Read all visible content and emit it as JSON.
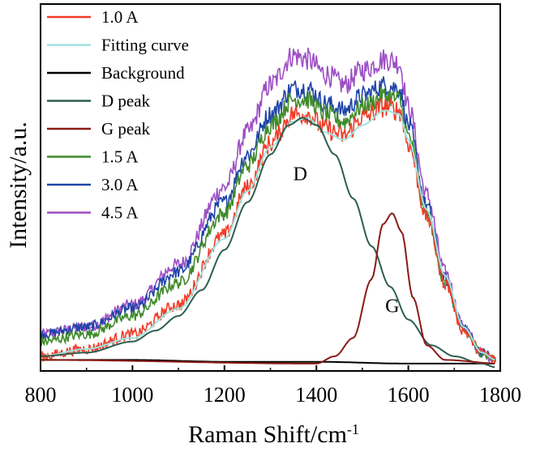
{
  "chart_data": {
    "type": "line",
    "title": "",
    "xlabel": "Raman Shift/cm",
    "xlabel_sup": "-1",
    "ylabel": "Intensity/a.u.",
    "xlim": [
      800,
      1800
    ],
    "ylim": [
      0,
      1.0
    ],
    "x_ticks": [
      800,
      1000,
      1200,
      1400,
      1600,
      1800
    ],
    "y_ticks_labeled": false,
    "grid": false,
    "legend_position": "top-left",
    "annotations": [
      {
        "text": "D",
        "x": 1365,
        "y": 0.52
      },
      {
        "text": "G",
        "x": 1565,
        "y": 0.16
      }
    ],
    "series": [
      {
        "name": "1.0 A",
        "color": "#f03c28",
        "points": [
          [
            800,
            0.04
          ],
          [
            900,
            0.06
          ],
          [
            1000,
            0.1
          ],
          [
            1100,
            0.18
          ],
          [
            1200,
            0.37
          ],
          [
            1250,
            0.5
          ],
          [
            1300,
            0.62
          ],
          [
            1350,
            0.7
          ],
          [
            1380,
            0.7
          ],
          [
            1420,
            0.66
          ],
          [
            1460,
            0.64
          ],
          [
            1500,
            0.69
          ],
          [
            1550,
            0.72
          ],
          [
            1580,
            0.71
          ],
          [
            1600,
            0.62
          ],
          [
            1640,
            0.42
          ],
          [
            1680,
            0.24
          ],
          [
            1720,
            0.11
          ],
          [
            1760,
            0.05
          ],
          [
            1790,
            0.03
          ]
        ]
      },
      {
        "name": "Fitting curve",
        "color": "#9fe3e0",
        "points": [
          [
            800,
            0.04
          ],
          [
            900,
            0.06
          ],
          [
            1000,
            0.09
          ],
          [
            1100,
            0.17
          ],
          [
            1200,
            0.36
          ],
          [
            1250,
            0.49
          ],
          [
            1300,
            0.61
          ],
          [
            1350,
            0.68
          ],
          [
            1380,
            0.69
          ],
          [
            1420,
            0.65
          ],
          [
            1460,
            0.63
          ],
          [
            1500,
            0.67
          ],
          [
            1550,
            0.71
          ],
          [
            1580,
            0.7
          ],
          [
            1600,
            0.63
          ],
          [
            1640,
            0.44
          ],
          [
            1680,
            0.26
          ],
          [
            1720,
            0.12
          ],
          [
            1760,
            0.05
          ],
          [
            1790,
            0.03
          ]
        ]
      },
      {
        "name": "Background",
        "color": "#000000",
        "points": [
          [
            800,
            0.03
          ],
          [
            1000,
            0.03
          ],
          [
            1200,
            0.025
          ],
          [
            1400,
            0.025
          ],
          [
            1600,
            0.02
          ],
          [
            1800,
            0.02
          ]
        ]
      },
      {
        "name": "D peak",
        "color": "#2d5e4e",
        "points": [
          [
            800,
            0.04
          ],
          [
            900,
            0.05
          ],
          [
            1000,
            0.08
          ],
          [
            1050,
            0.11
          ],
          [
            1100,
            0.15
          ],
          [
            1150,
            0.22
          ],
          [
            1200,
            0.33
          ],
          [
            1250,
            0.46
          ],
          [
            1300,
            0.59
          ],
          [
            1340,
            0.67
          ],
          [
            1370,
            0.69
          ],
          [
            1400,
            0.67
          ],
          [
            1440,
            0.59
          ],
          [
            1480,
            0.47
          ],
          [
            1520,
            0.34
          ],
          [
            1560,
            0.23
          ],
          [
            1600,
            0.14
          ],
          [
            1650,
            0.07
          ],
          [
            1700,
            0.04
          ],
          [
            1760,
            0.02
          ],
          [
            1790,
            0.01
          ]
        ]
      },
      {
        "name": "G peak",
        "color": "#8b1a14",
        "points": [
          [
            800,
            0.03
          ],
          [
            1400,
            0.02
          ],
          [
            1440,
            0.04
          ],
          [
            1480,
            0.09
          ],
          [
            1520,
            0.25
          ],
          [
            1545,
            0.4
          ],
          [
            1565,
            0.43
          ],
          [
            1585,
            0.38
          ],
          [
            1610,
            0.2
          ],
          [
            1640,
            0.07
          ],
          [
            1680,
            0.03
          ],
          [
            1800,
            0.02
          ]
        ]
      },
      {
        "name": "1.5 A",
        "color": "#3e8a2a",
        "points": [
          [
            800,
            0.08
          ],
          [
            900,
            0.1
          ],
          [
            1000,
            0.15
          ],
          [
            1100,
            0.24
          ],
          [
            1200,
            0.43
          ],
          [
            1250,
            0.56
          ],
          [
            1300,
            0.67
          ],
          [
            1350,
            0.74
          ],
          [
            1380,
            0.74
          ],
          [
            1420,
            0.7
          ],
          [
            1460,
            0.68
          ],
          [
            1500,
            0.72
          ],
          [
            1550,
            0.75
          ],
          [
            1580,
            0.74
          ],
          [
            1600,
            0.64
          ],
          [
            1640,
            0.43
          ],
          [
            1680,
            0.24
          ],
          [
            1720,
            0.11
          ],
          [
            1760,
            0.05
          ],
          [
            1790,
            0.03
          ]
        ]
      },
      {
        "name": "3.0 A",
        "color": "#1f44a8",
        "points": [
          [
            800,
            0.1
          ],
          [
            900,
            0.12
          ],
          [
            1000,
            0.17
          ],
          [
            1100,
            0.27
          ],
          [
            1200,
            0.46
          ],
          [
            1250,
            0.59
          ],
          [
            1300,
            0.7
          ],
          [
            1350,
            0.77
          ],
          [
            1380,
            0.77
          ],
          [
            1420,
            0.73
          ],
          [
            1460,
            0.71
          ],
          [
            1500,
            0.75
          ],
          [
            1550,
            0.78
          ],
          [
            1580,
            0.77
          ],
          [
            1600,
            0.67
          ],
          [
            1640,
            0.45
          ],
          [
            1680,
            0.25
          ],
          [
            1720,
            0.12
          ],
          [
            1760,
            0.05
          ],
          [
            1790,
            0.03
          ]
        ]
      },
      {
        "name": "4.5 A",
        "color": "#9d4fc4",
        "points": [
          [
            800,
            0.1
          ],
          [
            900,
            0.12
          ],
          [
            1000,
            0.18
          ],
          [
            1100,
            0.29
          ],
          [
            1200,
            0.5
          ],
          [
            1250,
            0.65
          ],
          [
            1300,
            0.78
          ],
          [
            1350,
            0.86
          ],
          [
            1380,
            0.85
          ],
          [
            1420,
            0.81
          ],
          [
            1460,
            0.78
          ],
          [
            1500,
            0.82
          ],
          [
            1550,
            0.85
          ],
          [
            1580,
            0.84
          ],
          [
            1600,
            0.72
          ],
          [
            1640,
            0.48
          ],
          [
            1680,
            0.27
          ],
          [
            1720,
            0.12
          ],
          [
            1760,
            0.05
          ],
          [
            1790,
            0.03
          ]
        ]
      }
    ]
  }
}
